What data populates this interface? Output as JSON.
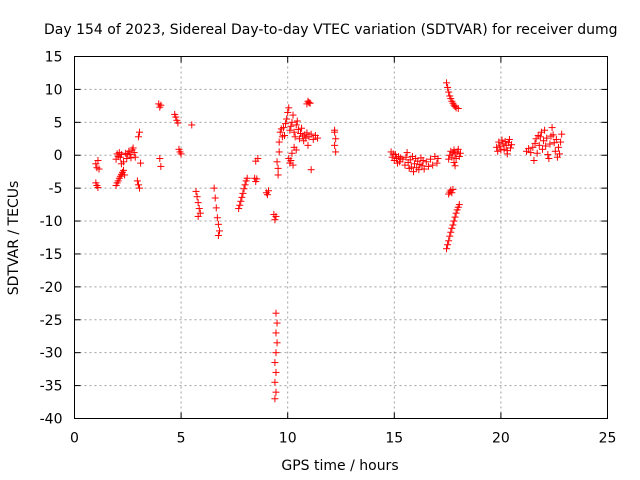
{
  "chart_data": {
    "type": "scatter",
    "title": "Day 154 of 2023, Sidereal Day-to-day VTEC variation (SDTVAR) for receiver dumg",
    "xlabel": "GPS time / hours",
    "ylabel": "SDTVAR / TECUs",
    "xlim": [
      0,
      25
    ],
    "ylim": [
      -40,
      15
    ],
    "xticks": [
      0,
      5,
      10,
      15,
      20,
      25
    ],
    "yticks": [
      15,
      10,
      5,
      0,
      -5,
      -10,
      -15,
      -20,
      -25,
      -30,
      -35,
      -40
    ],
    "grid": true,
    "marker": "+",
    "color": "#ff0000",
    "series": [
      {
        "name": "SDTVAR",
        "points": [
          [
            1.0,
            -4.2
          ],
          [
            1.05,
            -4.6
          ],
          [
            1.1,
            -4.9
          ],
          [
            1.0,
            -1.3
          ],
          [
            1.05,
            -1.9
          ],
          [
            1.1,
            -0.8
          ],
          [
            1.15,
            -2.1
          ],
          [
            1.95,
            -4.6
          ],
          [
            2.0,
            -4.2
          ],
          [
            2.05,
            -3.9
          ],
          [
            2.1,
            -3.5
          ],
          [
            2.15,
            -3.2
          ],
          [
            2.2,
            -2.9
          ],
          [
            2.25,
            -2.6
          ],
          [
            2.3,
            -2.3
          ],
          [
            2.35,
            -3.0
          ],
          [
            1.95,
            -0.6
          ],
          [
            2.0,
            0.2
          ],
          [
            2.05,
            -0.2
          ],
          [
            2.1,
            0.4
          ],
          [
            2.15,
            -0.3
          ],
          [
            2.2,
            0.1
          ],
          [
            2.3,
            -1.0
          ],
          [
            2.4,
            0.3
          ],
          [
            2.45,
            -0.5
          ],
          [
            2.5,
            0.2
          ],
          [
            2.55,
            0.6
          ],
          [
            2.6,
            0.1
          ],
          [
            2.65,
            -0.4
          ],
          [
            2.7,
            0.8
          ],
          [
            2.75,
            1.1
          ],
          [
            2.8,
            0.4
          ],
          [
            2.85,
            -0.3
          ],
          [
            2.2,
            -1.3
          ],
          [
            2.95,
            -3.9
          ],
          [
            3.0,
            -4.5
          ],
          [
            3.05,
            -5.0
          ],
          [
            3.0,
            2.8
          ],
          [
            3.05,
            3.5
          ],
          [
            3.1,
            -1.2
          ],
          [
            3.95,
            7.8
          ],
          [
            4.0,
            7.3
          ],
          [
            4.05,
            7.6
          ],
          [
            4.0,
            -0.5
          ],
          [
            4.05,
            -1.7
          ],
          [
            4.7,
            6.2
          ],
          [
            4.75,
            5.8
          ],
          [
            4.8,
            5.3
          ],
          [
            4.85,
            4.9
          ],
          [
            4.9,
            0.9
          ],
          [
            4.95,
            0.5
          ],
          [
            5.0,
            0.2
          ],
          [
            5.5,
            4.6
          ],
          [
            5.7,
            -5.5
          ],
          [
            5.75,
            -6.3
          ],
          [
            5.8,
            -7.2
          ],
          [
            5.85,
            -8.1
          ],
          [
            5.9,
            -8.8
          ],
          [
            5.8,
            -9.3
          ],
          [
            6.55,
            -5.0
          ],
          [
            6.6,
            -6.5
          ],
          [
            6.65,
            -8.0
          ],
          [
            6.7,
            -9.5
          ],
          [
            6.75,
            -10.5
          ],
          [
            6.8,
            -11.5
          ],
          [
            6.75,
            -12.2
          ],
          [
            7.7,
            -8.1
          ],
          [
            7.75,
            -7.6
          ],
          [
            7.8,
            -7.0
          ],
          [
            7.85,
            -6.4
          ],
          [
            7.9,
            -5.8
          ],
          [
            7.95,
            -5.1
          ],
          [
            8.0,
            -4.5
          ],
          [
            8.05,
            -3.9
          ],
          [
            8.1,
            -3.5
          ],
          [
            8.45,
            -3.5
          ],
          [
            8.5,
            -4.0
          ],
          [
            8.55,
            -3.6
          ],
          [
            8.6,
            -0.5
          ],
          [
            8.5,
            -0.9
          ],
          [
            9.0,
            -5.7
          ],
          [
            9.05,
            -6.0
          ],
          [
            9.1,
            -5.4
          ],
          [
            9.35,
            -9.0
          ],
          [
            9.4,
            -9.8
          ],
          [
            9.45,
            -9.3
          ],
          [
            9.45,
            -24.0
          ],
          [
            9.5,
            -25.5
          ],
          [
            9.45,
            -27.0
          ],
          [
            9.5,
            -28.5
          ],
          [
            9.45,
            -30.0
          ],
          [
            9.4,
            -31.5
          ],
          [
            9.45,
            -33.0
          ],
          [
            9.4,
            -34.5
          ],
          [
            9.45,
            -36.0
          ],
          [
            9.4,
            -37.0
          ],
          [
            9.5,
            -1.0
          ],
          [
            9.55,
            -2.0
          ],
          [
            9.55,
            -3.0
          ],
          [
            9.6,
            0.5
          ],
          [
            9.6,
            2.0
          ],
          [
            9.65,
            3.5
          ],
          [
            9.7,
            4.0
          ],
          [
            9.75,
            2.8
          ],
          [
            9.8,
            4.2
          ],
          [
            9.85,
            3.0
          ],
          [
            9.9,
            4.8
          ],
          [
            9.95,
            5.5
          ],
          [
            10.0,
            6.5
          ],
          [
            10.05,
            7.2
          ],
          [
            10.1,
            3.8
          ],
          [
            10.15,
            4.4
          ],
          [
            10.2,
            5.0
          ],
          [
            10.25,
            6.1
          ],
          [
            10.3,
            3.5
          ],
          [
            10.35,
            2.8
          ],
          [
            10.4,
            4.6
          ],
          [
            10.45,
            5.2
          ],
          [
            10.5,
            3.9
          ],
          [
            10.55,
            2.5
          ],
          [
            10.6,
            3.3
          ],
          [
            10.65,
            4.1
          ],
          [
            10.7,
            2.9
          ],
          [
            10.75,
            2.2
          ],
          [
            10.8,
            3.1
          ],
          [
            10.85,
            2.6
          ],
          [
            10.9,
            3.4
          ],
          [
            10.95,
            1.5
          ],
          [
            11.0,
            2.8
          ],
          [
            11.1,
            3.2
          ],
          [
            11.2,
            2.4
          ],
          [
            11.3,
            3.0
          ],
          [
            11.4,
            2.6
          ],
          [
            10.05,
            -0.5
          ],
          [
            10.1,
            -1.2
          ],
          [
            10.15,
            -0.8
          ],
          [
            10.2,
            0.3
          ],
          [
            10.3,
            1.2
          ],
          [
            10.4,
            0.8
          ],
          [
            10.25,
            -1.5
          ],
          [
            10.9,
            7.8
          ],
          [
            10.95,
            8.2
          ],
          [
            11.0,
            8.0
          ],
          [
            11.05,
            7.9
          ],
          [
            11.1,
            -2.2
          ],
          [
            12.2,
            3.5
          ],
          [
            12.25,
            2.5
          ],
          [
            12.2,
            1.5
          ],
          [
            12.25,
            0.5
          ],
          [
            12.2,
            3.8
          ],
          [
            14.85,
            0.5
          ],
          [
            14.9,
            -0.3
          ],
          [
            14.95,
            0.2
          ],
          [
            15.0,
            -0.8
          ],
          [
            15.05,
            0.1
          ],
          [
            15.1,
            -0.5
          ],
          [
            15.15,
            -1.2
          ],
          [
            15.2,
            -0.2
          ],
          [
            15.25,
            -1.0
          ],
          [
            15.3,
            -0.4
          ],
          [
            15.4,
            -0.6
          ],
          [
            15.5,
            -1.5
          ],
          [
            15.55,
            -0.3
          ],
          [
            15.6,
            0.4
          ],
          [
            15.65,
            -1.1
          ],
          [
            15.7,
            -2.0
          ],
          [
            15.75,
            -0.7
          ],
          [
            15.8,
            -1.8
          ],
          [
            15.85,
            -0.2
          ],
          [
            15.9,
            -2.5
          ],
          [
            15.95,
            -1.3
          ],
          [
            16.0,
            -0.5
          ],
          [
            16.05,
            -1.9
          ],
          [
            16.1,
            -0.9
          ],
          [
            16.15,
            -2.2
          ],
          [
            16.2,
            -1.4
          ],
          [
            16.25,
            -0.4
          ],
          [
            16.3,
            -1.6
          ],
          [
            16.35,
            -0.8
          ],
          [
            16.4,
            -2.1
          ],
          [
            16.5,
            -1.0
          ],
          [
            16.6,
            -1.7
          ],
          [
            16.7,
            -0.6
          ],
          [
            16.8,
            -1.5
          ],
          [
            16.9,
            -0.2
          ],
          [
            17.0,
            -1.2
          ],
          [
            17.05,
            -0.5
          ],
          [
            17.45,
            11.0
          ],
          [
            17.5,
            10.3
          ],
          [
            17.55,
            9.6
          ],
          [
            17.6,
            9.0
          ],
          [
            17.65,
            8.6
          ],
          [
            17.7,
            8.2
          ],
          [
            17.75,
            7.9
          ],
          [
            17.8,
            7.6
          ],
          [
            17.85,
            7.4
          ],
          [
            17.9,
            7.2
          ],
          [
            18.0,
            7.1
          ],
          [
            17.55,
            -0.6
          ],
          [
            17.6,
            0.0
          ],
          [
            17.65,
            0.6
          ],
          [
            17.7,
            -0.3
          ],
          [
            17.75,
            0.4
          ],
          [
            17.8,
            0.8
          ],
          [
            17.85,
            0.2
          ],
          [
            17.9,
            -0.5
          ],
          [
            17.95,
            0.5
          ],
          [
            18.0,
            0.9
          ],
          [
            18.05,
            -0.2
          ],
          [
            18.1,
            0.3
          ],
          [
            17.55,
            -5.9
          ],
          [
            17.6,
            -5.6
          ],
          [
            17.65,
            -5.3
          ],
          [
            17.7,
            -5.7
          ],
          [
            17.75,
            -5.2
          ],
          [
            17.8,
            -1.1
          ],
          [
            17.85,
            -1.6
          ],
          [
            17.45,
            -14.2
          ],
          [
            17.5,
            -13.6
          ],
          [
            17.55,
            -13.0
          ],
          [
            17.6,
            -12.3
          ],
          [
            17.65,
            -11.7
          ],
          [
            17.7,
            -11.1
          ],
          [
            17.75,
            -10.6
          ],
          [
            17.8,
            -10.0
          ],
          [
            17.85,
            -9.4
          ],
          [
            17.9,
            -8.8
          ],
          [
            17.95,
            -8.3
          ],
          [
            18.0,
            -7.9
          ],
          [
            18.05,
            -7.5
          ],
          [
            19.8,
            1.2
          ],
          [
            19.85,
            0.6
          ],
          [
            19.9,
            2.0
          ],
          [
            19.95,
            1.4
          ],
          [
            20.0,
            0.8
          ],
          [
            20.05,
            2.3
          ],
          [
            20.1,
            1.7
          ],
          [
            20.15,
            0.9
          ],
          [
            20.2,
            2.1
          ],
          [
            20.25,
            1.5
          ],
          [
            20.3,
            0.7
          ],
          [
            20.35,
            1.9
          ],
          [
            20.4,
            2.4
          ],
          [
            20.45,
            1.1
          ],
          [
            20.5,
            1.6
          ],
          [
            20.3,
            0.2
          ],
          [
            21.2,
            0.6
          ],
          [
            21.3,
            1.0
          ],
          [
            21.4,
            0.4
          ],
          [
            21.5,
            1.2
          ],
          [
            21.55,
            -0.8
          ],
          [
            21.6,
            1.8
          ],
          [
            21.65,
            2.5
          ],
          [
            21.7,
            0.3
          ],
          [
            21.75,
            3.0
          ],
          [
            21.8,
            1.5
          ],
          [
            21.85,
            2.8
          ],
          [
            21.9,
            3.5
          ],
          [
            21.95,
            0.9
          ],
          [
            22.0,
            2.2
          ],
          [
            22.05,
            3.8
          ],
          [
            22.1,
            1.4
          ],
          [
            22.15,
            2.6
          ],
          [
            22.2,
            0.1
          ],
          [
            22.25,
            -0.5
          ],
          [
            22.3,
            1.7
          ],
          [
            22.35,
            2.9
          ],
          [
            22.4,
            4.2
          ],
          [
            22.45,
            3.1
          ],
          [
            22.5,
            1.9
          ],
          [
            22.55,
            0.6
          ],
          [
            22.6,
            2.4
          ],
          [
            22.65,
            -0.3
          ],
          [
            22.7,
            1.2
          ],
          [
            22.75,
            0.2
          ],
          [
            22.8,
            2.0
          ],
          [
            22.85,
            3.2
          ]
        ]
      }
    ]
  }
}
